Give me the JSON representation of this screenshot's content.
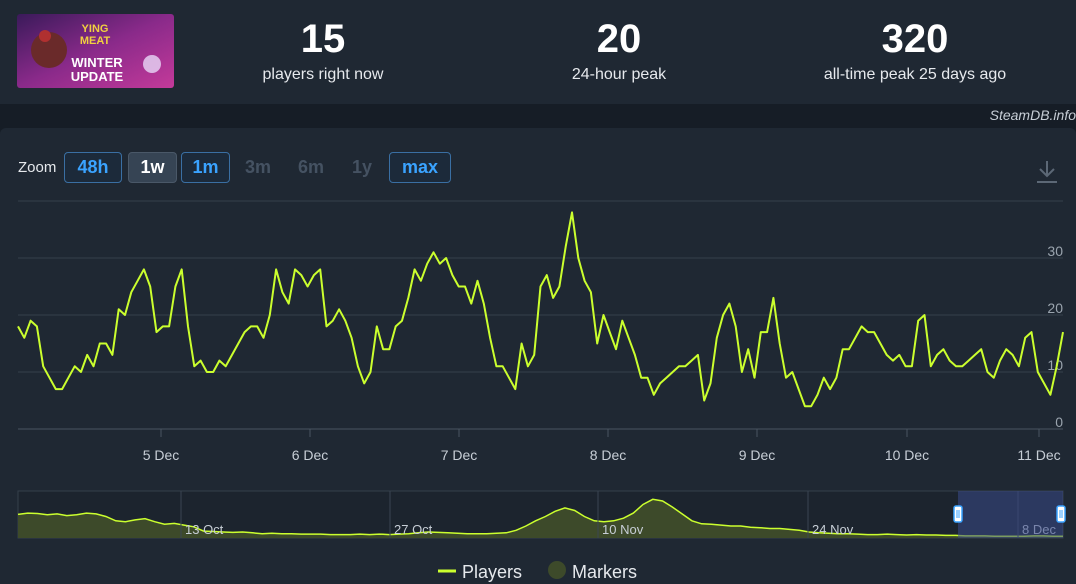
{
  "stats": [
    {
      "value": "15",
      "label": "players right now"
    },
    {
      "value": "20",
      "label": "24-hour peak"
    },
    {
      "value": "320",
      "label": "all-time peak 25 days ago"
    }
  ],
  "credit": "SteamDB.info",
  "thumbnail": {
    "line1": "YING",
    "line2": "MEAT",
    "line3": "WINTER",
    "line4": "UPDATE"
  },
  "zoom": {
    "label": "Zoom",
    "buttons": [
      {
        "label": "48h",
        "state": "enabled"
      },
      {
        "label": "1w",
        "state": "selected"
      },
      {
        "label": "1m",
        "state": "enabled"
      },
      {
        "label": "3m",
        "state": "disabled"
      },
      {
        "label": "6m",
        "state": "disabled"
      },
      {
        "label": "1y",
        "state": "disabled"
      },
      {
        "label": "max",
        "state": "enabled"
      }
    ]
  },
  "download_icon": "download-icon",
  "colors": {
    "players": "#cbff2e",
    "markers": "#3d4a2a",
    "navigator_fill": "#3d4a2a",
    "selection": "#3a4a8a"
  },
  "chart_data": {
    "type": "line",
    "x_ticks": [
      "5 Dec",
      "6 Dec",
      "7 Dec",
      "8 Dec",
      "9 Dec",
      "10 Dec",
      "11 Dec"
    ],
    "y_ticks": [
      "0",
      "10",
      "20",
      "30"
    ],
    "ylim": [
      0,
      40
    ],
    "grid": true,
    "series": [
      {
        "name": "Players",
        "color": "#cbff2e",
        "values": [
          18,
          16,
          19,
          18,
          11,
          9,
          7,
          7,
          9,
          11,
          10,
          13,
          11,
          15,
          15,
          13,
          21,
          20,
          24,
          26,
          28,
          25,
          17,
          18,
          18,
          25,
          28,
          18,
          11,
          12,
          10,
          10,
          12,
          11,
          13,
          15,
          17,
          18,
          18,
          16,
          20,
          28,
          24,
          22,
          28,
          27,
          25,
          27,
          28,
          18,
          19,
          21,
          19,
          16,
          11,
          8,
          10,
          18,
          14,
          14,
          18,
          19,
          23,
          28,
          26,
          29,
          31,
          29,
          30,
          27,
          25,
          25,
          22,
          26,
          22,
          16,
          11,
          11,
          9,
          7,
          15,
          11,
          13,
          25,
          27,
          23,
          25,
          32,
          38,
          30,
          26,
          24,
          15,
          20,
          17,
          14,
          19,
          16,
          13,
          9,
          9,
          6,
          8,
          9,
          10,
          11,
          11,
          12,
          13,
          5,
          8,
          16,
          20,
          22,
          18,
          10,
          14,
          9,
          17,
          17,
          23,
          15,
          9,
          10,
          7,
          4,
          4,
          6,
          9,
          7,
          9,
          14,
          14,
          16,
          18,
          17,
          17,
          15,
          13,
          12,
          13,
          11,
          11,
          19,
          20,
          11,
          13,
          14,
          12,
          11,
          11,
          12,
          13,
          14,
          10,
          9,
          12,
          14,
          13,
          11,
          16,
          17,
          10,
          8,
          6,
          11,
          17
        ]
      }
    ],
    "navigator": {
      "x_ticks": [
        "13 Oct",
        "27 Oct",
        "10 Nov",
        "24 Nov",
        "8 Dec"
      ],
      "values": [
        55,
        58,
        57,
        54,
        56,
        52,
        54,
        58,
        56,
        50,
        40,
        38,
        42,
        45,
        38,
        32,
        34,
        30,
        26,
        16,
        15,
        14,
        13,
        14,
        12,
        10,
        11,
        10,
        10,
        9,
        9,
        9,
        8,
        8,
        8,
        9,
        8,
        9,
        8,
        9,
        10,
        12,
        14,
        13,
        12,
        11,
        10,
        10,
        10,
        11,
        12,
        18,
        28,
        40,
        50,
        62,
        70,
        64,
        50,
        40,
        38,
        40,
        46,
        58,
        78,
        90,
        86,
        72,
        56,
        40,
        33,
        32,
        30,
        28,
        28,
        25,
        24,
        22,
        22,
        20,
        18,
        14,
        12,
        11,
        10,
        10,
        9,
        8,
        8,
        9,
        8,
        7,
        8,
        7,
        7,
        6,
        6,
        5,
        5,
        5,
        4,
        4,
        4,
        4,
        5,
        5,
        4,
        4
      ],
      "selection": "1w"
    },
    "legend": [
      {
        "name": "Players",
        "symbol": "line"
      },
      {
        "name": "Markers",
        "symbol": "circle"
      }
    ]
  }
}
